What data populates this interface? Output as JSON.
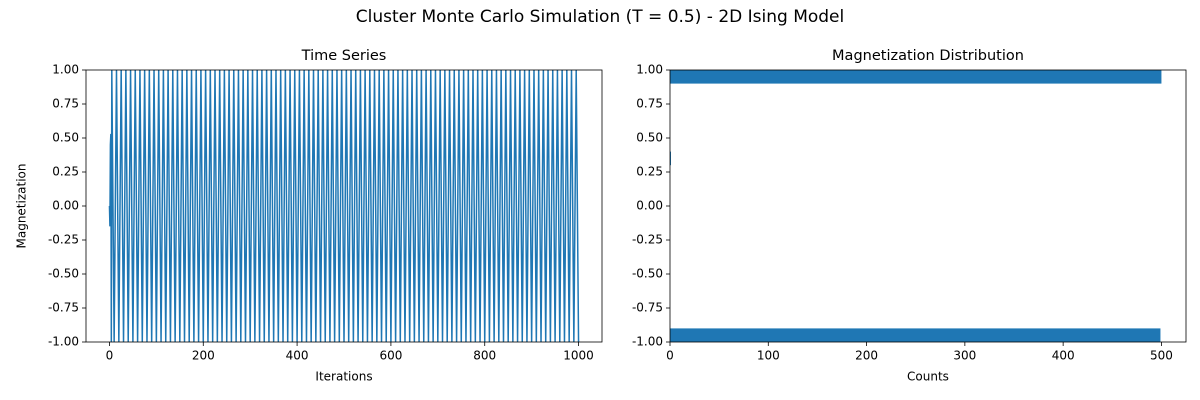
{
  "title": "Cluster Monte Carlo Simulation (T = 0.5) - 2D Ising Model",
  "chart_data": [
    {
      "type": "line",
      "title": "Time Series",
      "xlabel": "Iterations",
      "ylabel": "Magnetization",
      "color": "#1f77b4",
      "x": [
        0,
        1,
        2,
        3,
        4,
        5,
        10,
        15,
        20,
        25,
        30,
        35,
        40,
        45,
        50,
        55,
        60,
        65,
        70,
        75,
        80,
        85,
        90,
        95,
        100,
        105,
        110,
        115,
        120,
        125,
        130,
        135,
        140,
        145,
        150,
        155,
        160,
        165,
        170,
        175,
        180,
        185,
        190,
        195,
        200,
        205,
        210,
        215,
        220,
        225,
        230,
        235,
        240,
        245,
        250,
        255,
        260,
        265,
        270,
        275,
        280,
        285,
        290,
        295,
        300,
        305,
        310,
        315,
        320,
        325,
        330,
        335,
        340,
        345,
        350,
        355,
        360,
        365,
        370,
        375,
        380,
        385,
        390,
        395,
        400,
        405,
        410,
        415,
        420,
        425,
        430,
        435,
        440,
        445,
        450,
        455,
        460,
        465,
        470,
        475,
        480,
        485,
        490,
        495,
        500,
        505,
        510,
        515,
        520,
        525,
        530,
        535,
        540,
        545,
        550,
        555,
        560,
        565,
        570,
        575,
        580,
        585,
        590,
        595,
        600,
        605,
        610,
        615,
        620,
        625,
        630,
        635,
        640,
        645,
        650,
        655,
        660,
        665,
        670,
        675,
        680,
        685,
        690,
        695,
        700,
        705,
        710,
        715,
        720,
        725,
        730,
        735,
        740,
        745,
        750,
        755,
        760,
        765,
        770,
        775,
        780,
        785,
        790,
        795,
        800,
        805,
        810,
        815,
        820,
        825,
        830,
        835,
        840,
        845,
        850,
        855,
        860,
        865,
        870,
        875,
        880,
        885,
        890,
        895,
        900,
        905,
        910,
        915,
        920,
        925,
        930,
        935,
        940,
        945,
        950,
        955,
        960,
        965,
        970,
        975,
        980,
        985,
        990,
        995,
        1000
      ],
      "values": [
        0,
        -0.15,
        0.45,
        0.53,
        -1,
        1,
        -1,
        1,
        -1,
        1,
        -1,
        1,
        -1,
        1,
        -1,
        1,
        -1,
        1,
        -1,
        1,
        -1,
        1,
        -1,
        1,
        -1,
        1,
        -1,
        1,
        -1,
        1,
        -1,
        1,
        -1,
        1,
        -1,
        1,
        -1,
        1,
        -1,
        1,
        -1,
        1,
        -1,
        1,
        -1,
        1,
        -1,
        1,
        -1,
        1,
        -1,
        1,
        -1,
        1,
        -1,
        1,
        -1,
        1,
        -1,
        1,
        -1,
        1,
        -1,
        1,
        -1,
        1,
        -1,
        1,
        -1,
        1,
        -1,
        1,
        -1,
        1,
        -1,
        1,
        -1,
        1,
        -1,
        1,
        -1,
        1,
        -1,
        1,
        -1,
        1,
        -1,
        1,
        -1,
        1,
        -1,
        1,
        -1,
        1,
        -1,
        1,
        -1,
        1,
        -1,
        1,
        -1,
        1,
        -1,
        1,
        -1,
        1,
        -1,
        1,
        -1,
        1,
        -1,
        1,
        -1,
        1,
        -1,
        1,
        -1,
        1,
        -1,
        1,
        -1,
        1,
        -1,
        1,
        -1,
        1,
        -1,
        1,
        -1,
        1,
        -1,
        1,
        -1,
        1,
        -1,
        1,
        -1,
        1,
        -1,
        1,
        -1,
        1,
        -1,
        1,
        -1,
        1,
        -1,
        1,
        -1,
        1,
        -1,
        1,
        -1,
        1,
        -1,
        1,
        -1,
        1,
        -1,
        1,
        -1,
        1,
        -1,
        1,
        -1,
        1,
        -1,
        1,
        -1,
        1,
        -1,
        1,
        -1,
        1,
        -1,
        1,
        -1,
        1,
        -1,
        1,
        -1,
        1,
        -1,
        1,
        -1,
        1,
        -1,
        1,
        -1,
        1,
        -1,
        1,
        -1,
        1,
        -1,
        1,
        -1,
        1,
        -1,
        1,
        -1,
        1,
        -1,
        1,
        -1
      ],
      "xlim": [
        -50,
        1050
      ],
      "xticks": [
        0,
        200,
        400,
        600,
        800,
        1000
      ],
      "ylim": [
        -1,
        1
      ],
      "yticks": [
        {
          "value": -1,
          "label": "-1.00"
        },
        {
          "value": -0.75,
          "label": "-0.75"
        },
        {
          "value": -0.5,
          "label": "-0.50"
        },
        {
          "value": -0.25,
          "label": "-0.25"
        },
        {
          "value": 0,
          "label": "0.00"
        },
        {
          "value": 0.25,
          "label": "0.25"
        },
        {
          "value": 0.5,
          "label": "0.50"
        },
        {
          "value": 0.75,
          "label": "0.75"
        },
        {
          "value": 1,
          "label": "1.00"
        }
      ]
    },
    {
      "type": "histogram",
      "orientation": "horizontal",
      "title": "Magnetization Distribution",
      "xlabel": "Counts",
      "color": "#1f77b4",
      "bins": [
        -1,
        -0.9,
        -0.8,
        -0.7,
        -0.6,
        -0.5,
        -0.4,
        -0.3,
        -0.2,
        -0.1,
        0,
        0.1,
        0.2,
        0.3,
        0.4,
        0.5,
        0.6,
        0.7,
        0.8,
        0.9,
        1
      ],
      "values": [
        499,
        0,
        0,
        0,
        0,
        0,
        0,
        0,
        0,
        0,
        0,
        0,
        0,
        1,
        0,
        0,
        0,
        0,
        0,
        500
      ],
      "xlim": [
        0,
        525
      ],
      "xticks": [
        0,
        100,
        200,
        300,
        400,
        500
      ],
      "ylim": [
        -1,
        1
      ],
      "yticks": [
        {
          "value": -1,
          "label": "-1.00"
        },
        {
          "value": -0.75,
          "label": "-0.75"
        },
        {
          "value": -0.5,
          "label": "-0.50"
        },
        {
          "value": -0.25,
          "label": "-0.25"
        },
        {
          "value": 0,
          "label": "0.00"
        },
        {
          "value": 0.25,
          "label": "0.25"
        },
        {
          "value": 0.5,
          "label": "0.50"
        },
        {
          "value": 0.75,
          "label": "0.75"
        },
        {
          "value": 1,
          "label": "1.00"
        }
      ]
    }
  ]
}
